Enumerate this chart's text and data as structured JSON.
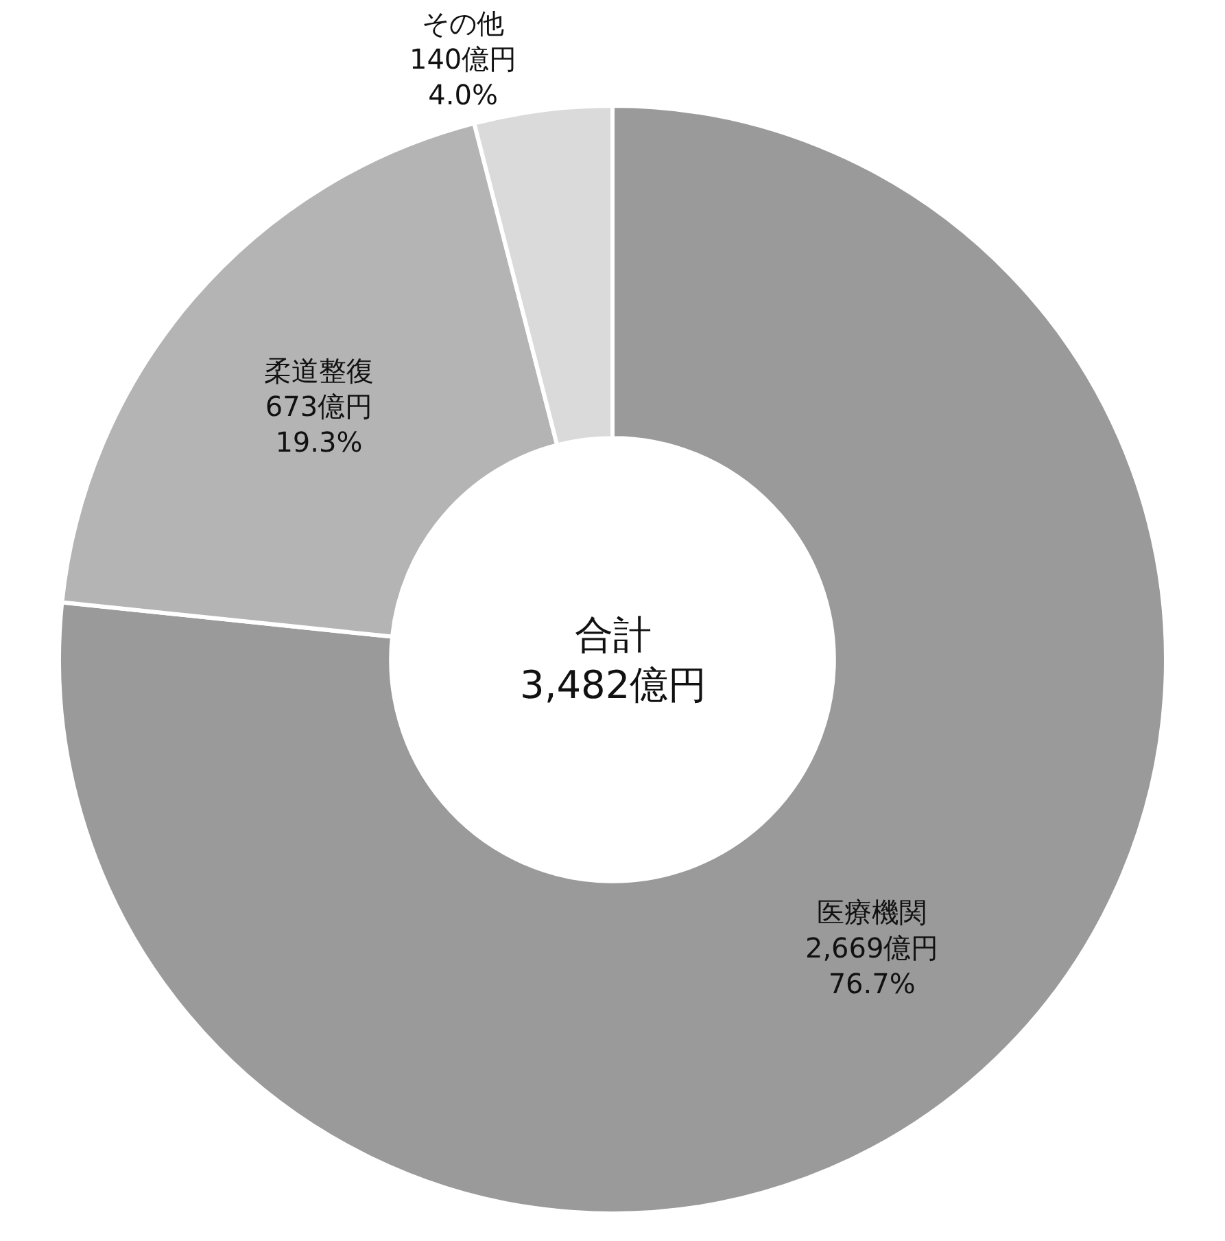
{
  "chart_data": {
    "type": "donut",
    "categories": [
      "医療機関",
      "柔道整復",
      "その他"
    ],
    "values": [
      2669,
      673,
      140
    ],
    "colors": [
      "#9a9a9a",
      "#b4b4b4",
      "#dadada"
    ],
    "value_labels": [
      "2,669億円\n76.7%",
      "673億円\n19.3%",
      "140億円\n4.0%"
    ],
    "annotations": [
      "合計\n3,482億円"
    ],
    "legend": false
  }
}
